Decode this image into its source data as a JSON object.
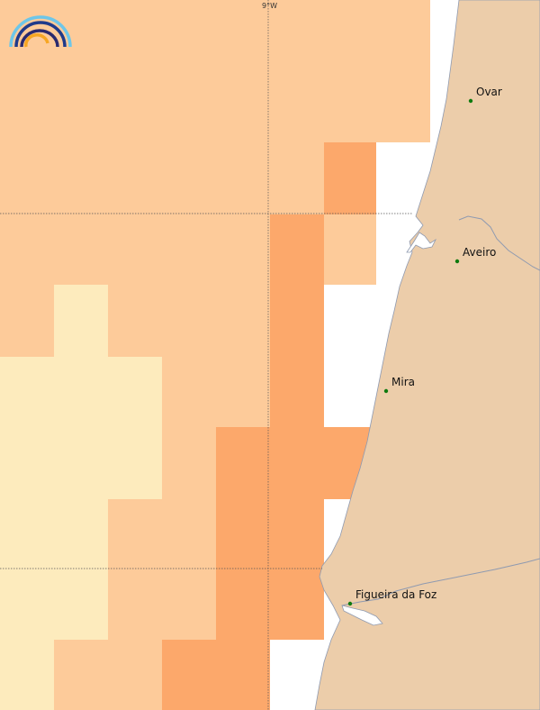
{
  "map": {
    "colors": {
      "sea_light": "#fdebbd",
      "sea_medium": "#fdcb9a",
      "sea_dark": "#fca86b",
      "land": "#eccdaa",
      "coast_river": "#8f9ab0",
      "grid_line": "#555555",
      "city_dot": "#0e7a0e"
    },
    "logo": {
      "name": "rainbow-logo-icon"
    },
    "graticule": {
      "lon_label": "9°W"
    },
    "places": [
      {
        "name": "Ovar"
      },
      {
        "name": "Aveiro"
      },
      {
        "name": "Mira"
      },
      {
        "name": "Figueira da Foz"
      }
    ]
  }
}
